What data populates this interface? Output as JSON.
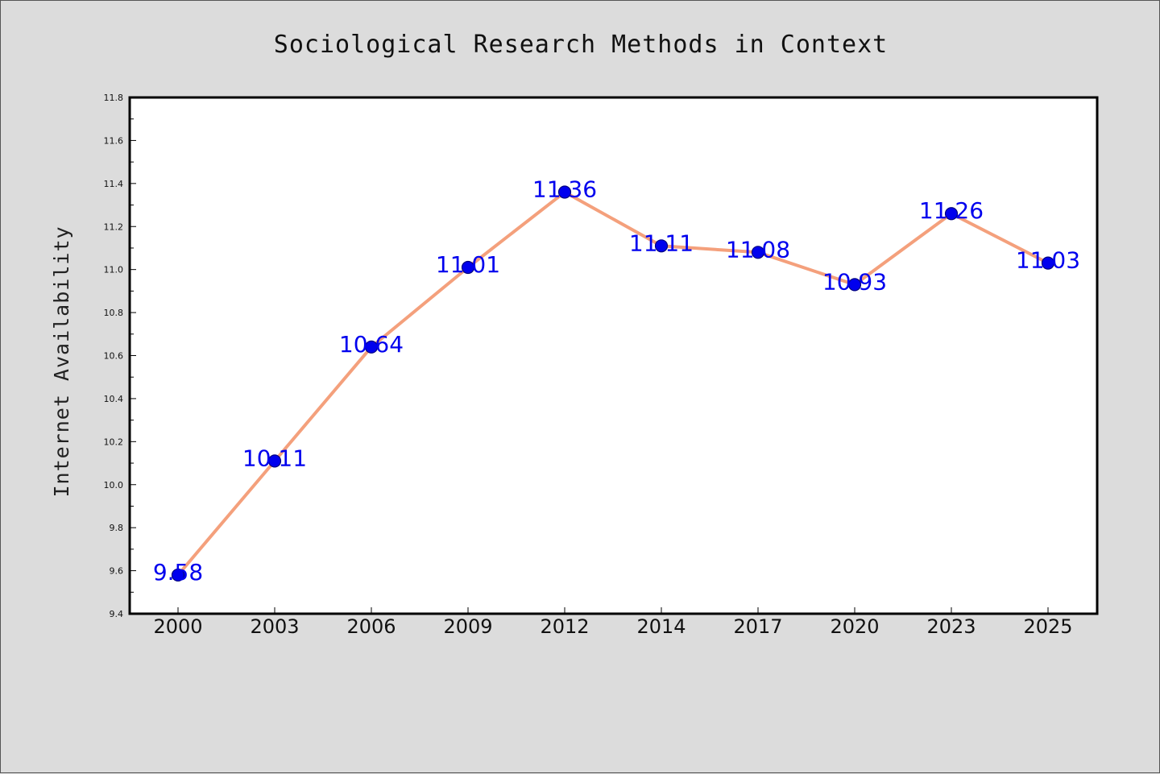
{
  "chart_data": {
    "type": "line",
    "title": "Sociological Research Methods in Context",
    "xlabel": "",
    "ylabel": "Internet Availability",
    "categories": [
      "2000",
      "2003",
      "2006",
      "2009",
      "2012",
      "2014",
      "2017",
      "2020",
      "2023",
      "2025"
    ],
    "series": [
      {
        "values": [
          9.58,
          10.11,
          10.64,
          11.01,
          11.36,
          11.11,
          11.08,
          10.93,
          11.26,
          11.03
        ]
      }
    ],
    "data_labels": [
      "9.58",
      "10.11",
      "10.64",
      "11.01",
      "11.36",
      "11.11",
      "11.08",
      "10.93",
      "11.26",
      "11.03"
    ],
    "ylim": [
      9.4,
      11.8
    ],
    "y_ticks": [
      "9.4",
      "9.6",
      "9.8",
      "10.0",
      "10.2",
      "10.4",
      "10.6",
      "10.8",
      "11.0",
      "11.2",
      "11.4",
      "11.6",
      "11.8"
    ],
    "grid": false,
    "legend": "none",
    "colors": {
      "line": "#f4a07c",
      "marker": "#0000ee",
      "marker_edge": "#000080",
      "data_label": "#0000ee",
      "plot_background": "#ffffff",
      "figure_background": "#dcdcdc"
    }
  }
}
